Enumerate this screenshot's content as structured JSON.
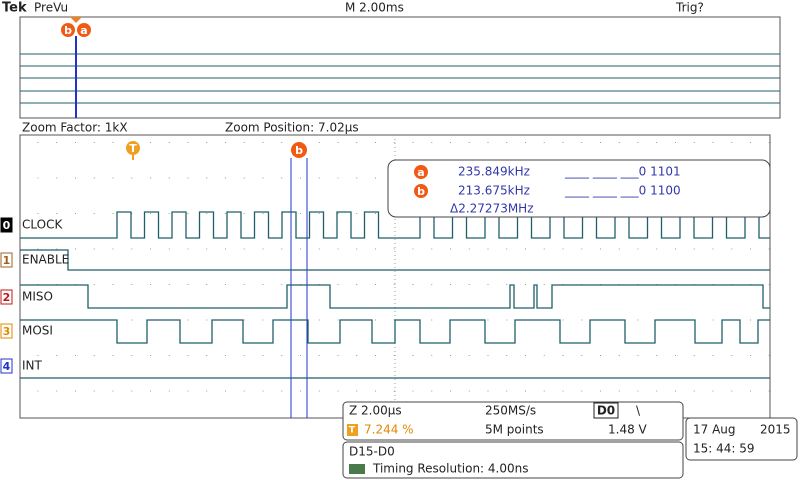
{
  "header": {
    "brand": "Tek",
    "mode": "PreVu",
    "timebase": "M 2.00ms",
    "trigger": "Trig?"
  },
  "overview": {
    "cursor_b": "b",
    "cursor_a": "a"
  },
  "zoom": {
    "factor": "Zoom Factor: 1kX",
    "position": "Zoom Position: 7.02µs",
    "trigger_marker": "T",
    "cursor_marker": "b"
  },
  "readout": {
    "rows": [
      {
        "marker": "a",
        "frequency": "235.849kHz",
        "bits": "____ ____ ___0 1101"
      },
      {
        "marker": "b",
        "frequency": "213.675kHz",
        "bits": "____ ____ ___0 1100"
      }
    ],
    "delta": "Δ2.27273MHz"
  },
  "channels": [
    {
      "number": "0",
      "name": "CLOCK"
    },
    {
      "number": "1",
      "name": "ENABLE"
    },
    {
      "number": "2",
      "name": "MISO"
    },
    {
      "number": "3",
      "name": "MOSI"
    },
    {
      "number": "4",
      "name": "INT"
    }
  ],
  "status": {
    "zoom_scale": "Z 2.00µs",
    "sample_rate": "250MS/s",
    "trigger_source": "D0",
    "trigger_slope": "\\",
    "trigger_marker": "T",
    "trigger_position": "7.244 %",
    "record_length": "5M points",
    "trigger_level": "1.48 V"
  },
  "bus": {
    "name": "D15-D0",
    "resolution": "Timing Resolution: 4.00ns"
  },
  "datetime": {
    "date": "17 Aug",
    "year": "2015",
    "time": "15: 44: 59"
  }
}
